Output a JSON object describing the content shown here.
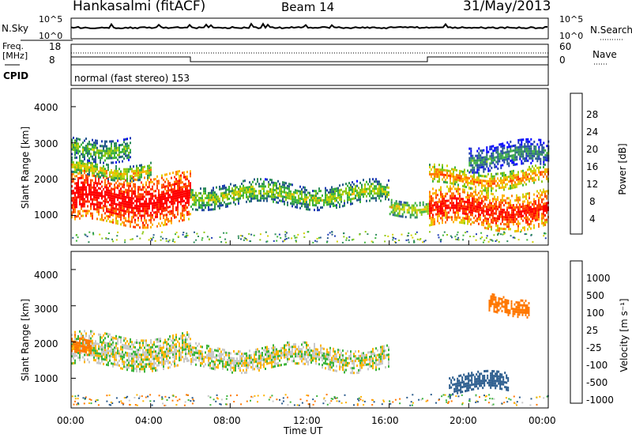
{
  "header": {
    "station": "Hankasalmi (fitACF)",
    "beam": "Beam 14",
    "date": "31/May/2013"
  },
  "top_panels": {
    "nsky_label": "N.Sky",
    "nsky_ticks": [
      "10^5",
      "10^0"
    ],
    "nsearch_label": "N.Search",
    "freq_label_line1": "Freq.",
    "freq_label_line2": "[MHz]",
    "freq_ticks": [
      "18",
      "8"
    ],
    "nave_ticks": [
      "60",
      "0"
    ],
    "nave_label": "Nave",
    "cpid_label": "CPID",
    "cpid_text": "normal (fast stereo) 153"
  },
  "axis": {
    "ylabel": "Slant Range [km]",
    "xlabel": "Time UT",
    "y_ticks": [
      "4000",
      "3000",
      "2000",
      "1000"
    ],
    "x_ticks": [
      "00:00",
      "04:00",
      "08:00",
      "12:00",
      "16:00",
      "20:00",
      "00:00"
    ]
  },
  "power_bar": {
    "label": "Power [dB]",
    "ticks": [
      "28",
      "24",
      "20",
      "16",
      "12",
      "8",
      "4"
    ],
    "colors": [
      "#ff0000",
      "#ff3c00",
      "#ff7800",
      "#ffb400",
      "#d2d200",
      "#8cc814",
      "#3cb43c",
      "#2d8c5a",
      "#285a8c",
      "#1e3cb4",
      "#0000ff"
    ]
  },
  "velocity_bar": {
    "label": "Velocity [m s⁻¹]",
    "ticks": [
      "1000",
      "500",
      "100",
      "25",
      "-25",
      "-100",
      "-500",
      "-1000"
    ],
    "colors": [
      "#2846b4",
      "#285a8c",
      "#2d8c5a",
      "#3cb43c",
      "#50d232",
      "#c8c8c8",
      "#c8c8c8",
      "#ffa000",
      "#ff7800",
      "#ff5000",
      "#ff2800",
      "#ff0000"
    ]
  },
  "chart_data": {
    "type": "heatmap",
    "x_range_hours": [
      0,
      24
    ],
    "y_range_km": [
      180,
      4500
    ],
    "power_panel": {
      "bands": [
        {
          "t": [
            0,
            6
          ],
          "r": [
            800,
            2200
          ],
          "center_db": 26
        },
        {
          "t": [
            0,
            4
          ],
          "r": [
            2100,
            2500
          ],
          "center_db": 14
        },
        {
          "t": [
            0,
            3
          ],
          "r": [
            2600,
            3200
          ],
          "center_db": 10
        },
        {
          "t": [
            6,
            16
          ],
          "r": [
            1300,
            1900
          ],
          "center_db": 12
        },
        {
          "t": [
            16,
            18
          ],
          "r": [
            1100,
            1500
          ],
          "center_db": 14
        },
        {
          "t": [
            18,
            24
          ],
          "r": [
            700,
            1700
          ],
          "center_db": 24
        },
        {
          "t": [
            18,
            24
          ],
          "r": [
            1800,
            2300
          ],
          "center_db": 18
        },
        {
          "t": [
            20,
            24
          ],
          "r": [
            2300,
            3000
          ],
          "center_db": 6
        }
      ]
    },
    "velocity_panel": {
      "bands": [
        {
          "t": [
            0,
            6
          ],
          "r": [
            1300,
            2200
          ],
          "center_v": 0
        },
        {
          "t": [
            6,
            16
          ],
          "r": [
            1300,
            1900
          ],
          "center_v": 0
        },
        {
          "t": [
            0,
            1
          ],
          "r": [
            1700,
            2200
          ],
          "center_v": -300
        },
        {
          "t": [
            19,
            22
          ],
          "r": [
            600,
            1100
          ],
          "center_v": 200
        },
        {
          "t": [
            21,
            23
          ],
          "r": [
            2800,
            3300
          ],
          "center_v": -300
        }
      ]
    }
  }
}
